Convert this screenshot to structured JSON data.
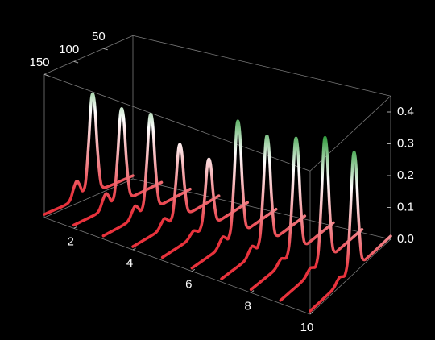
{
  "chart_data": {
    "type": "waterfall3d",
    "xlim": [
      1,
      10
    ],
    "xticks": [
      2,
      4,
      6,
      8,
      10
    ],
    "dlim": [
      0,
      150
    ],
    "dticks": [
      50,
      100,
      150
    ],
    "ylim": [
      0,
      0.45
    ],
    "yticks": [
      {
        "value": 0,
        "label": "0.0"
      },
      0.1,
      0.2,
      0.3,
      0.4
    ],
    "colormap": [
      "#e8323c",
      "#ffffff",
      "#2e9a3a"
    ],
    "depth": [
      0,
      20,
      40,
      50,
      55,
      60,
      65,
      70,
      75,
      80,
      85,
      90,
      95,
      100,
      105,
      110,
      120,
      135,
      150
    ],
    "series": [
      {
        "x": 1,
        "values": [
          0.01,
          0.01,
          0.01,
          0.014,
          0.04,
          0.141,
          0.292,
          0.313,
          0.172,
          0.056,
          0.031,
          0.053,
          0.07,
          0.053,
          0.025,
          0.013,
          0.01,
          0.01,
          0.01
        ]
      },
      {
        "x": 2,
        "values": [
          0.01,
          0.01,
          0.01,
          0.013,
          0.039,
          0.133,
          0.274,
          0.294,
          0.162,
          0.053,
          0.028,
          0.046,
          0.06,
          0.046,
          0.023,
          0.012,
          0.01,
          0.01,
          0.01
        ]
      },
      {
        "x": 3,
        "values": [
          0.01,
          0.01,
          0.01,
          0.013,
          0.039,
          0.137,
          0.283,
          0.303,
          0.167,
          0.054,
          0.026,
          0.039,
          0.05,
          0.038,
          0.02,
          0.012,
          0.01,
          0.01,
          0.01
        ]
      },
      {
        "x": 4,
        "values": [
          0.01,
          0.01,
          0.01,
          0.013,
          0.033,
          0.108,
          0.221,
          0.237,
          0.131,
          0.044,
          0.022,
          0.031,
          0.04,
          0.031,
          0.018,
          0.011,
          0.01,
          0.01,
          0.01
        ]
      },
      {
        "x": 5,
        "values": [
          0.01,
          0.01,
          0.01,
          0.012,
          0.031,
          0.1,
          0.204,
          0.218,
          0.121,
          0.041,
          0.019,
          0.024,
          0.03,
          0.024,
          0.015,
          0.011,
          0.01,
          0.01,
          0.01
        ]
      },
      {
        "x": 6,
        "values": [
          0.01,
          0.01,
          0.01,
          0.014,
          0.045,
          0.162,
          0.336,
          0.36,
          0.197,
          0.061,
          0.024,
          0.031,
          0.04,
          0.031,
          0.018,
          0.011,
          0.01,
          0.01,
          0.01
        ]
      },
      {
        "x": 7,
        "values": [
          0.01,
          0.01,
          0.01,
          0.014,
          0.043,
          0.154,
          0.318,
          0.341,
          0.187,
          0.059,
          0.024,
          0.031,
          0.04,
          0.031,
          0.018,
          0.011,
          0.01,
          0.01,
          0.01
        ]
      },
      {
        "x": 8,
        "values": [
          0.01,
          0.01,
          0.01,
          0.014,
          0.045,
          0.162,
          0.336,
          0.36,
          0.197,
          0.061,
          0.022,
          0.024,
          0.03,
          0.024,
          0.015,
          0.011,
          0.01,
          0.01,
          0.01
        ]
      },
      {
        "x": 9,
        "values": [
          0.01,
          0.01,
          0.01,
          0.014,
          0.048,
          0.174,
          0.362,
          0.388,
          0.212,
          0.065,
          0.022,
          0.024,
          0.03,
          0.024,
          0.015,
          0.011,
          0.01,
          0.01,
          0.01
        ]
      },
      {
        "x": 10,
        "values": [
          0.01,
          0.01,
          0.01,
          0.014,
          0.046,
          0.166,
          0.344,
          0.369,
          0.202,
          0.062,
          0.022,
          0.024,
          0.03,
          0.024,
          0.015,
          0.011,
          0.01,
          0.01,
          0.01
        ]
      }
    ]
  }
}
